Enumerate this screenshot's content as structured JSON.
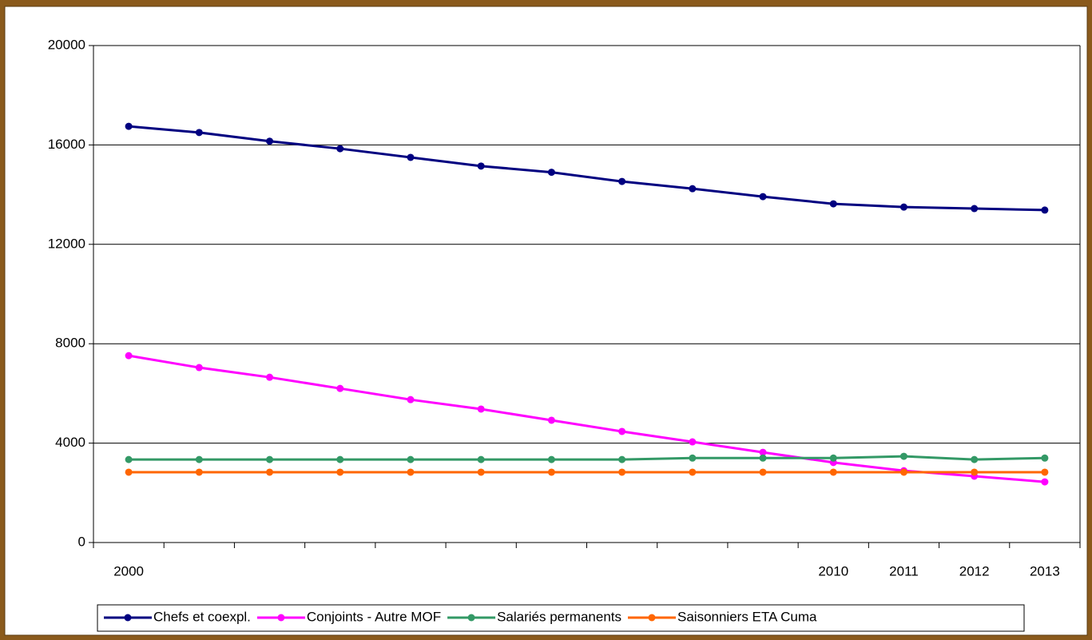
{
  "chart_data": {
    "type": "line",
    "categories": [
      "2000",
      null,
      null,
      null,
      null,
      null,
      null,
      null,
      null,
      null,
      "2010",
      "2011",
      "2012",
      "2013"
    ],
    "series": [
      {
        "name": "Chefs et coexpl.",
        "color": "#000080",
        "values": [
          16750,
          16500,
          16150,
          15850,
          15500,
          15150,
          14900,
          14530,
          14240,
          13920,
          13630,
          13500,
          13440,
          13380
        ]
      },
      {
        "name": "Conjoints - Autre MOF",
        "color": "#ff00ff",
        "values": [
          7520,
          7040,
          6650,
          6200,
          5750,
          5370,
          4920,
          4470,
          4050,
          3630,
          3220,
          2890,
          2670,
          2440
        ]
      },
      {
        "name": "Salariés permanents",
        "color": "#339966",
        "values": [
          3340,
          3340,
          3340,
          3340,
          3340,
          3340,
          3340,
          3340,
          3400,
          3400,
          3400,
          3470,
          3340,
          3400
        ]
      },
      {
        "name": "Saisonniers ETA Cuma",
        "color": "#ff6600",
        "values": [
          2830,
          2830,
          2830,
          2830,
          2830,
          2830,
          2830,
          2830,
          2830,
          2830,
          2830,
          2830,
          2830,
          2830
        ]
      }
    ],
    "ylim": [
      0,
      20000
    ],
    "yticks": [
      0,
      4000,
      8000,
      12000,
      16000,
      20000
    ],
    "grid": true,
    "legend": "bottom"
  }
}
